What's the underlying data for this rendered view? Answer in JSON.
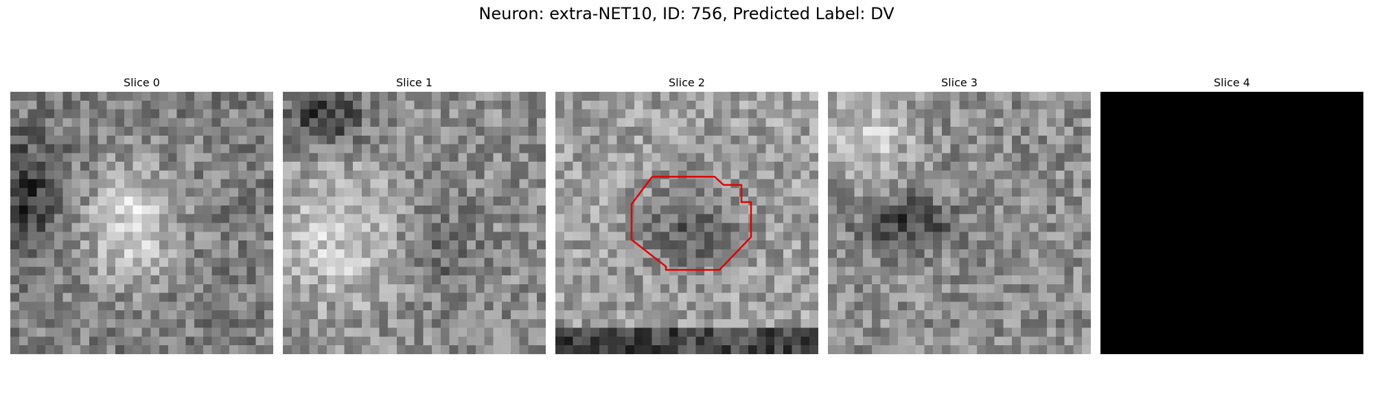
{
  "figure": {
    "title": "Neuron: extra-NET10, ID: 756, Predicted Label: DV"
  },
  "panels": [
    {
      "title": "Slice 0",
      "style": "noise",
      "seed": 11,
      "variant": 0,
      "contour": false
    },
    {
      "title": "Slice 1",
      "style": "noise",
      "seed": 23,
      "variant": 1,
      "contour": false
    },
    {
      "title": "Slice 2",
      "style": "noise",
      "seed": 37,
      "variant": 2,
      "contour": true
    },
    {
      "title": "Slice 3",
      "style": "noise",
      "seed": 51,
      "variant": 3,
      "contour": false
    },
    {
      "title": "Slice 4",
      "style": "black",
      "seed": 0,
      "variant": 4,
      "contour": false
    }
  ],
  "colors": {
    "contour": "#e00000",
    "blank_slice": "#000000"
  }
}
